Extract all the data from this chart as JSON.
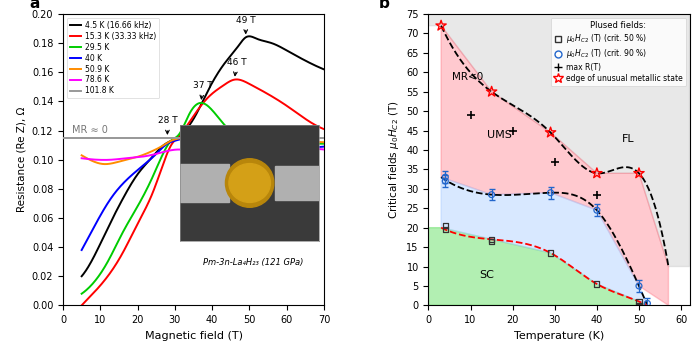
{
  "panel_a": {
    "title": "a",
    "xlabel": "Magnetic field (T)",
    "ylabel": "Resistance (Re Z), Ω",
    "xlim": [
      0,
      70
    ],
    "ylim": [
      0.0,
      0.2
    ],
    "yticks": [
      0.0,
      0.02,
      0.04,
      0.06,
      0.08,
      0.1,
      0.12,
      0.14,
      0.16,
      0.18,
      0.2
    ],
    "xticks": [
      0,
      10,
      20,
      30,
      40,
      50,
      60,
      70
    ],
    "mr0_y": 0.115,
    "mr0_text": "MR ≈ 0",
    "formula_text": "Pm-3n-La₄H₂₃ (121 GPa)",
    "curves": [
      {
        "label": "4.5 K (16.66 kHz)",
        "color": "#000000",
        "points": [
          [
            5,
            0.02
          ],
          [
            8,
            0.032
          ],
          [
            12,
            0.053
          ],
          [
            16,
            0.073
          ],
          [
            20,
            0.09
          ],
          [
            24,
            0.102
          ],
          [
            27,
            0.11
          ],
          [
            29,
            0.113
          ],
          [
            31,
            0.116
          ],
          [
            35,
            0.128
          ],
          [
            39,
            0.148
          ],
          [
            43,
            0.165
          ],
          [
            47,
            0.178
          ],
          [
            49,
            0.184
          ],
          [
            52,
            0.183
          ],
          [
            56,
            0.18
          ],
          [
            60,
            0.175
          ],
          [
            65,
            0.168
          ],
          [
            70,
            0.162
          ]
        ]
      },
      {
        "label": "15.3 K (33.33 kHz)",
        "color": "#ff0000",
        "points": [
          [
            5,
            0.0
          ],
          [
            8,
            0.008
          ],
          [
            12,
            0.02
          ],
          [
            16,
            0.036
          ],
          [
            20,
            0.056
          ],
          [
            24,
            0.077
          ],
          [
            27,
            0.098
          ],
          [
            29,
            0.11
          ],
          [
            31,
            0.116
          ],
          [
            35,
            0.13
          ],
          [
            39,
            0.143
          ],
          [
            43,
            0.151
          ],
          [
            46,
            0.155
          ],
          [
            50,
            0.152
          ],
          [
            55,
            0.145
          ],
          [
            60,
            0.137
          ],
          [
            65,
            0.128
          ],
          [
            70,
            0.121
          ]
        ]
      },
      {
        "label": "29.5 K",
        "color": "#00cc00",
        "points": [
          [
            5,
            0.008
          ],
          [
            8,
            0.015
          ],
          [
            12,
            0.03
          ],
          [
            16,
            0.05
          ],
          [
            20,
            0.068
          ],
          [
            24,
            0.088
          ],
          [
            27,
            0.105
          ],
          [
            29,
            0.113
          ],
          [
            31,
            0.117
          ],
          [
            34,
            0.132
          ],
          [
            37,
            0.139
          ],
          [
            40,
            0.134
          ],
          [
            44,
            0.122
          ],
          [
            48,
            0.115
          ],
          [
            52,
            0.112
          ],
          [
            58,
            0.111
          ],
          [
            65,
            0.111
          ],
          [
            70,
            0.111
          ]
        ]
      },
      {
        "label": "40 K",
        "color": "#0000ff",
        "points": [
          [
            5,
            0.038
          ],
          [
            9,
            0.057
          ],
          [
            13,
            0.074
          ],
          [
            17,
            0.086
          ],
          [
            21,
            0.095
          ],
          [
            25,
            0.104
          ],
          [
            28,
            0.111
          ],
          [
            30,
            0.113
          ],
          [
            33,
            0.115
          ],
          [
            37,
            0.115
          ],
          [
            42,
            0.113
          ],
          [
            48,
            0.111
          ],
          [
            54,
            0.11
          ],
          [
            60,
            0.11
          ],
          [
            65,
            0.109
          ],
          [
            70,
            0.109
          ]
        ]
      },
      {
        "label": "50.9 K",
        "color": "#ff8c00",
        "points": [
          [
            5,
            0.103
          ],
          [
            8,
            0.099
          ],
          [
            11,
            0.097
          ],
          [
            14,
            0.098
          ],
          [
            17,
            0.1
          ],
          [
            20,
            0.102
          ],
          [
            24,
            0.106
          ],
          [
            27,
            0.11
          ],
          [
            29,
            0.113
          ],
          [
            32,
            0.115
          ],
          [
            36,
            0.116
          ],
          [
            40,
            0.115
          ],
          [
            45,
            0.114
          ],
          [
            50,
            0.113
          ],
          [
            55,
            0.113
          ],
          [
            60,
            0.112
          ],
          [
            65,
            0.112
          ],
          [
            70,
            0.112
          ]
        ]
      },
      {
        "label": "78.6 K",
        "color": "#ff00ff",
        "points": [
          [
            5,
            0.101
          ],
          [
            9,
            0.1
          ],
          [
            13,
            0.1
          ],
          [
            17,
            0.101
          ],
          [
            21,
            0.102
          ],
          [
            25,
            0.104
          ],
          [
            28,
            0.106
          ],
          [
            31,
            0.107
          ],
          [
            35,
            0.106
          ],
          [
            40,
            0.105
          ],
          [
            45,
            0.105
          ],
          [
            50,
            0.105
          ],
          [
            55,
            0.106
          ],
          [
            60,
            0.106
          ],
          [
            65,
            0.107
          ],
          [
            70,
            0.107
          ]
        ]
      },
      {
        "label": "101.8 K",
        "color": "#999999",
        "points": [
          [
            0,
            0.115
          ],
          [
            70,
            0.115
          ]
        ]
      }
    ]
  },
  "panel_b": {
    "title": "b",
    "xlabel": "Temperature (K)",
    "ylabel": "Critical fields $\\mu_0H_{C2}$ (T)",
    "xlim": [
      0,
      62
    ],
    "ylim": [
      0,
      75
    ],
    "yticks": [
      0,
      5,
      10,
      15,
      20,
      25,
      30,
      35,
      40,
      45,
      50,
      55,
      60,
      65,
      70,
      75
    ],
    "xticks": [
      0,
      10,
      20,
      30,
      40,
      50,
      60
    ],
    "sq_points": [
      [
        4,
        19.5
      ],
      [
        4,
        20.5
      ],
      [
        15,
        17.0
      ],
      [
        15,
        16.5
      ],
      [
        29,
        13.5
      ],
      [
        40,
        5.5
      ],
      [
        50,
        1.0
      ],
      [
        50,
        0.0
      ]
    ],
    "circle_points": [
      [
        4,
        33.0
      ],
      [
        4,
        32.0
      ],
      [
        15,
        28.5
      ],
      [
        29,
        29.0
      ],
      [
        40,
        24.5
      ],
      [
        50,
        5.0
      ],
      [
        52,
        0.5
      ]
    ],
    "cross_points": [
      [
        10,
        49
      ],
      [
        20,
        45
      ],
      [
        30,
        37
      ],
      [
        40,
        28.5
      ]
    ],
    "star_points": [
      [
        3,
        72
      ],
      [
        15,
        55
      ],
      [
        29,
        44.5
      ],
      [
        40,
        34
      ],
      [
        50,
        34
      ]
    ],
    "upper_dashed_T": [
      3,
      15,
      29,
      40,
      50,
      57
    ],
    "upper_dashed_H": [
      72,
      55,
      44.5,
      34,
      34,
      10
    ],
    "lower90_dashed_T": [
      3,
      15,
      29,
      40,
      50,
      52
    ],
    "lower90_dashed_H": [
      33,
      28.5,
      29,
      24.5,
      5,
      0
    ],
    "lower50_dashed_T": [
      3,
      15,
      29,
      40,
      50,
      52
    ],
    "lower50_dashed_H": [
      20,
      17,
      13.5,
      5.5,
      1,
      0
    ],
    "sc_region_T": [
      0,
      3,
      15,
      29,
      40,
      50,
      52,
      52,
      0
    ],
    "sc_region_H": [
      20,
      20,
      17,
      13.5,
      5.5,
      1,
      0,
      0,
      0
    ],
    "ums_region_T": [
      3,
      15,
      29,
      40,
      50,
      52,
      40,
      29,
      15,
      3
    ],
    "ums_region_H": [
      33,
      28.5,
      29,
      24.5,
      5,
      0,
      5.5,
      13.5,
      17,
      20
    ],
    "upper_region_T": [
      0,
      3,
      15,
      29,
      40,
      50,
      57,
      57,
      62,
      62,
      0
    ],
    "upper_region_H": [
      75,
      72,
      55,
      44.5,
      34,
      34,
      10,
      75,
      75,
      0,
      0
    ]
  }
}
